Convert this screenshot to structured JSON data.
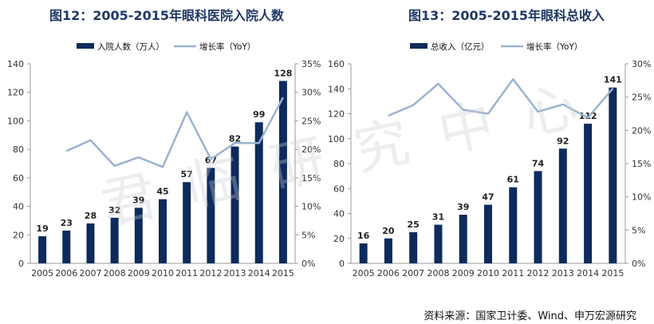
{
  "source": "资料来源：国家卫计委、Wind、申万宏源研究",
  "watermark": "君临研究中心",
  "colors": {
    "bar": "#0d2b5b",
    "line": "#9bb3d1",
    "title": "#1f3864",
    "axis": "#333333"
  },
  "chart_data": [
    {
      "type": "bar",
      "title": "图12：2005-2015年眼科医院入院人数",
      "categories": [
        "2005",
        "2006",
        "2007",
        "2008",
        "2009",
        "2010",
        "2011",
        "2012",
        "2013",
        "2014",
        "2015"
      ],
      "series": [
        {
          "name": "入院人数（万人）",
          "type": "bar",
          "axis": "left",
          "values": [
            19,
            23,
            28,
            32,
            39,
            45,
            57,
            67,
            82,
            99,
            128
          ],
          "labels": [
            "19",
            "23",
            "28",
            "32",
            "39",
            "45",
            "57",
            "67",
            "82",
            "99",
            "128"
          ]
        },
        {
          "name": "增长率（YoY）",
          "type": "line",
          "axis": "right",
          "values": [
            null,
            0.197,
            0.216,
            0.171,
            0.186,
            0.169,
            0.265,
            0.183,
            0.211,
            0.211,
            0.291
          ]
        }
      ],
      "ylim_left": [
        0,
        140
      ],
      "yticks_left": [
        "0",
        "20",
        "40",
        "60",
        "80",
        "100",
        "120",
        "140"
      ],
      "ylim_right": [
        0,
        0.35
      ],
      "yticks_right": [
        "0%",
        "5%",
        "10%",
        "15%",
        "20%",
        "25%",
        "30%",
        "35%"
      ],
      "legend": "top"
    },
    {
      "type": "bar",
      "title": "图13：2005-2015年眼科总收入",
      "categories": [
        "2005",
        "2006",
        "2007",
        "2008",
        "2009",
        "2010",
        "2011",
        "2012",
        "2013",
        "2014",
        "2015"
      ],
      "series": [
        {
          "name": "总收入（亿元）",
          "type": "bar",
          "axis": "left",
          "values": [
            16,
            20,
            25,
            31,
            39,
            47,
            61,
            74,
            92,
            112,
            141
          ],
          "labels": [
            "16",
            "20",
            "25",
            "31",
            "39",
            "47",
            "61",
            "74",
            "92",
            "112",
            "141"
          ]
        },
        {
          "name": "增长率（YoY）",
          "type": "line",
          "axis": "right",
          "values": [
            null,
            0.222,
            0.238,
            0.27,
            0.231,
            0.225,
            0.277,
            0.228,
            0.239,
            0.219,
            0.263
          ]
        }
      ],
      "ylim_left": [
        0,
        160
      ],
      "yticks_left": [
        "0",
        "20",
        "40",
        "60",
        "80",
        "100",
        "120",
        "140",
        "160"
      ],
      "ylim_right": [
        0,
        0.3
      ],
      "yticks_right": [
        "0%",
        "5%",
        "10%",
        "15%",
        "20%",
        "25%",
        "30%"
      ],
      "legend": "top"
    }
  ]
}
